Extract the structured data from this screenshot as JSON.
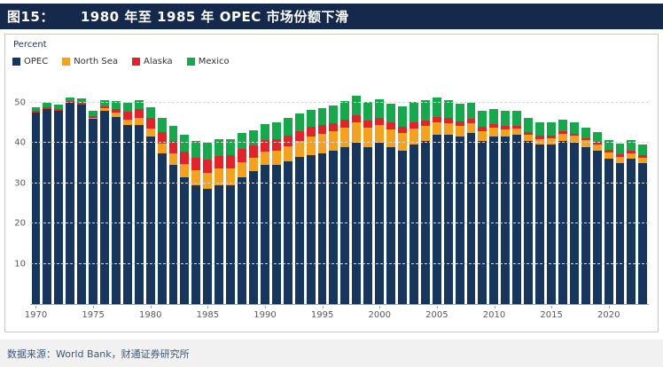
{
  "header": {
    "figure_label": "图15：",
    "title": "1980 年至 1985 年 OPEC 市场份额下滑"
  },
  "footer": {
    "source": "数据来源：World Bank，财通证券研究所"
  },
  "chart_data": {
    "type": "bar",
    "stacked": true,
    "title": "1980 年至 1985 年 OPEC 市场份额下滑",
    "ylabel": "Percent",
    "ylim": [
      0,
      55
    ],
    "yticks": [
      10,
      20,
      30,
      40,
      50
    ],
    "grid": "dashed-horizontal",
    "legend_position": "top-left",
    "x": [
      1970,
      1971,
      1972,
      1973,
      1974,
      1975,
      1976,
      1977,
      1978,
      1979,
      1980,
      1981,
      1982,
      1983,
      1984,
      1985,
      1986,
      1987,
      1988,
      1989,
      1990,
      1991,
      1992,
      1993,
      1994,
      1995,
      1996,
      1997,
      1998,
      1999,
      2000,
      2001,
      2002,
      2003,
      2004,
      2005,
      2006,
      2007,
      2008,
      2009,
      2010,
      2011,
      2012,
      2013,
      2014,
      2015,
      2016,
      2017,
      2018,
      2019,
      2020,
      2021,
      2022,
      2023
    ],
    "x_tick_interval": 5,
    "series": [
      {
        "name": "OPEC",
        "color": "#17365d",
        "values": [
          47.5,
          48.5,
          48,
          50,
          49.5,
          46,
          48,
          46.5,
          44.5,
          44.5,
          41.5,
          37.5,
          34.5,
          31.5,
          29.5,
          28.5,
          29.5,
          29.5,
          31.5,
          33,
          34.5,
          34.5,
          35.5,
          36.5,
          37,
          37.5,
          38,
          39,
          40,
          39,
          40,
          39,
          38,
          39.5,
          40.5,
          42,
          42,
          41.5,
          42.5,
          40.5,
          41.5,
          41.5,
          42,
          40.5,
          39.5,
          39.5,
          40.5,
          40,
          39,
          38,
          36,
          35,
          36,
          35
        ]
      },
      {
        "name": "North Sea",
        "color": "#f5a11c",
        "values": [
          0,
          0,
          0,
          0,
          0.1,
          0.3,
          0.6,
          1,
          1.3,
          1.6,
          2,
          2.4,
          2.9,
          3.3,
          3.7,
          4,
          4.1,
          4.1,
          3.8,
          3.4,
          3.3,
          3.5,
          3.7,
          4,
          4.5,
          4.7,
          4.8,
          4.8,
          5,
          4.8,
          4.5,
          4.4,
          4.4,
          4.1,
          3.7,
          3.2,
          2.9,
          2.7,
          2.4,
          2.4,
          2.2,
          1.9,
          1.6,
          1.5,
          1.5,
          1.7,
          1.7,
          1.7,
          1.6,
          1.6,
          1.7,
          1.6,
          1.4,
          1.4
        ]
      },
      {
        "name": "Alaska",
        "color": "#e32229",
        "values": [
          0.4,
          0.4,
          0.4,
          0.4,
          0.4,
          0.4,
          0.4,
          1,
          2,
          2.2,
          2.6,
          2.8,
          3,
          3.1,
          3.2,
          3.3,
          3.2,
          3.3,
          3.2,
          3,
          2.9,
          2.9,
          2.7,
          2.5,
          2.4,
          2.2,
          2.1,
          2,
          1.9,
          1.8,
          1.7,
          1.6,
          1.6,
          1.5,
          1.4,
          1.3,
          1.2,
          1.1,
          1,
          1,
          0.9,
          0.8,
          0.7,
          0.7,
          0.7,
          0.7,
          0.6,
          0.6,
          0.6,
          0.6,
          0.6,
          0.6,
          0.6,
          0.5
        ]
      },
      {
        "name": "Mexico",
        "color": "#15a94c",
        "values": [
          1,
          1,
          1,
          0.9,
          1,
          1.3,
          1.5,
          1.8,
          2.1,
          2.3,
          2.8,
          3.4,
          3.9,
          4.1,
          4.2,
          4.3,
          4.1,
          4.1,
          3.9,
          3.8,
          3.9,
          4.1,
          4.2,
          4.2,
          4.2,
          4.3,
          4.4,
          4.5,
          4.7,
          4.5,
          4.6,
          4.8,
          5,
          5.1,
          5,
          4.8,
          4.6,
          4.4,
          4.1,
          4,
          3.9,
          3.7,
          3.6,
          3.5,
          3.4,
          3.2,
          3,
          2.8,
          2.6,
          2.5,
          2.5,
          2.6,
          2.6,
          2.6
        ]
      }
    ]
  }
}
